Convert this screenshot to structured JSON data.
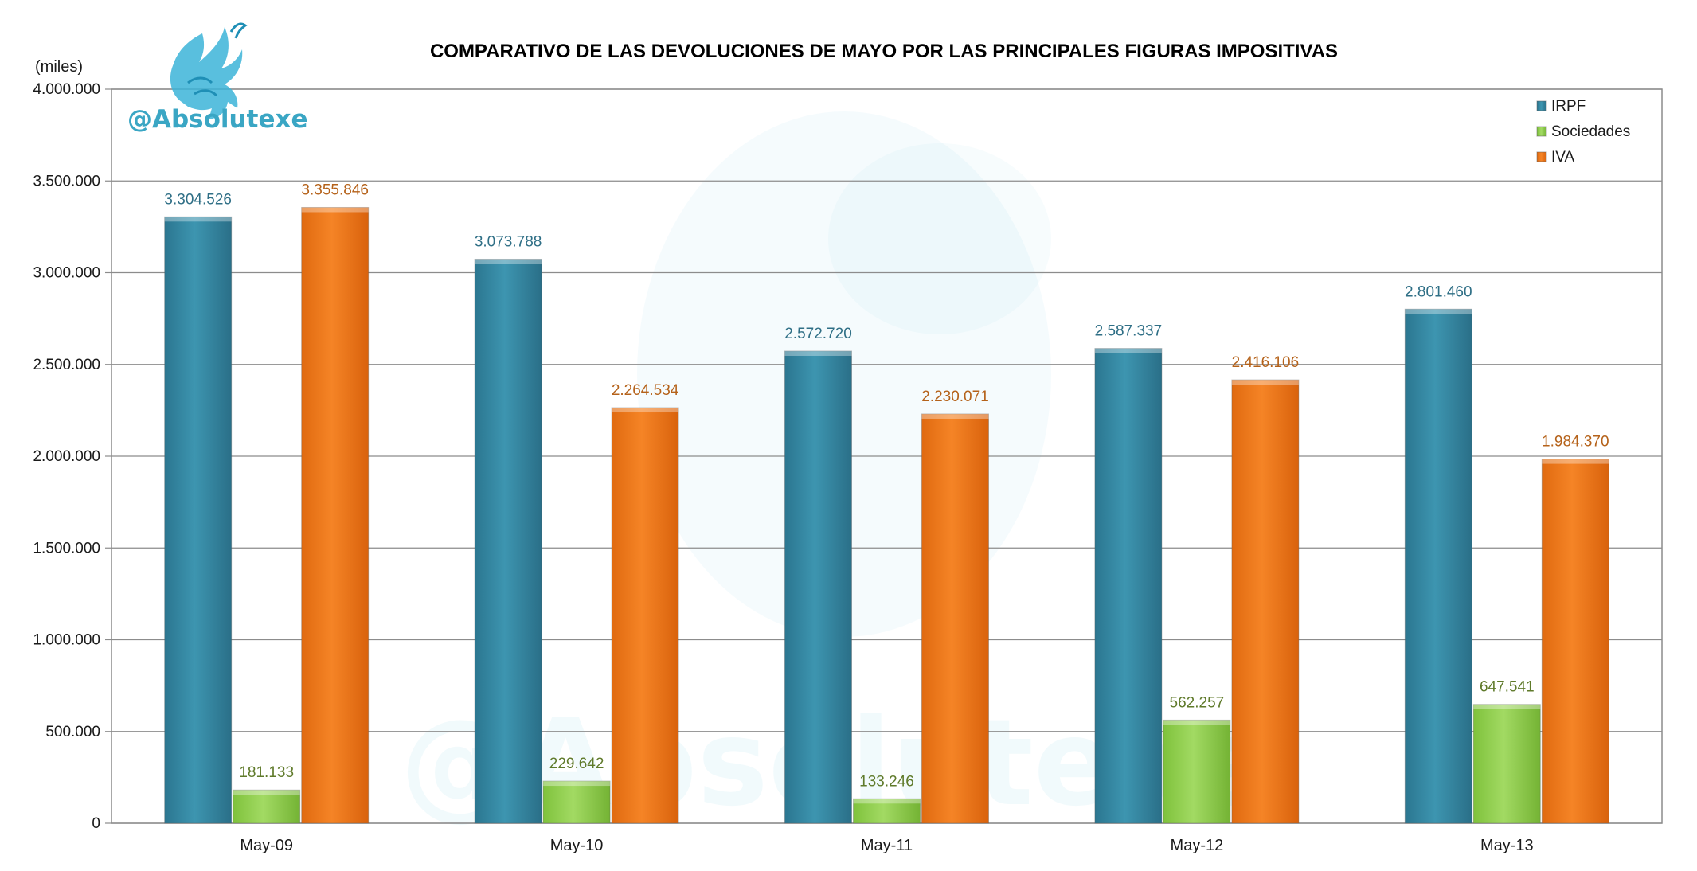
{
  "brand": {
    "handle": "@Absolutexe",
    "logo_icon": "griffin-logo-icon",
    "color": "#3aa6c4"
  },
  "chart_data": {
    "type": "bar",
    "title": "COMPARATIVO DE LAS DEVOLUCIONES DE MAYO POR LAS PRINCIPALES FIGURAS IMPOSITIVAS",
    "unit_label": "(miles)",
    "categories": [
      "May-09",
      "May-10",
      "May-11",
      "May-12",
      "May-13"
    ],
    "ylim": [
      0,
      4000000
    ],
    "yticks": [
      0,
      500000,
      1000000,
      1500000,
      2000000,
      2500000,
      3000000,
      3500000,
      4000000
    ],
    "ytick_labels": [
      "0",
      "500.000",
      "1.000.000",
      "1.500.000",
      "2.000.000",
      "2.500.000",
      "3.000.000",
      "3.500.000",
      "4.000.000"
    ],
    "grid": true,
    "legend_position": "top-right",
    "series": [
      {
        "name": "IRPF",
        "color": "#3a8fa8",
        "label_color": "#2f6f86",
        "values": [
          3304526,
          3073788,
          2572720,
          2587337,
          2801460
        ],
        "labels": [
          "3.304.526",
          "3.073.788",
          "2.572.720",
          "2.587.337",
          "2.801.460"
        ]
      },
      {
        "name": "Sociedades",
        "color": "#92d050",
        "label_color": "#5f7a2a",
        "values": [
          181133,
          229642,
          133246,
          562257,
          647541
        ],
        "labels": [
          "181.133",
          "229.642",
          "133.246",
          "562.257",
          "647.541"
        ]
      },
      {
        "name": "IVA",
        "color": "#f07a1a",
        "label_color": "#b5621a",
        "values": [
          3355846,
          2264534,
          2230071,
          2416106,
          1984370
        ],
        "labels": [
          "3.355.846",
          "2.264.534",
          "2.230.071",
          "2.416.106",
          "1.984.370"
        ]
      }
    ]
  }
}
